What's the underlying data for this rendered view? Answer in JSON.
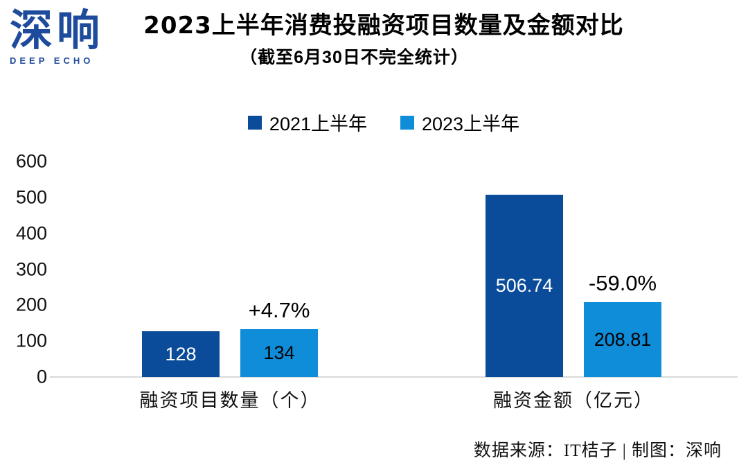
{
  "logo": {
    "text": "深响",
    "subtext": "DEEP ECHO",
    "color": "#1e4b9c"
  },
  "header": {
    "title": "2023上半年消费投融资项目数量及金额对比",
    "subtitle": "（截至6月30日不完全统计）"
  },
  "chart_data": {
    "type": "bar",
    "categories": [
      "融资项目数量（个）",
      "融资金额（亿元）"
    ],
    "category_keys": [
      "project-count",
      "amount"
    ],
    "series": [
      {
        "key": "2021-h1",
        "name": "2021上半年",
        "color": "#0b4c9a",
        "label_color": "#ffffff",
        "values": [
          128,
          506.74
        ]
      },
      {
        "key": "2023-h1",
        "name": "2023上半年",
        "color": "#0f8dd8",
        "label_color": "#000000",
        "values": [
          134,
          208.81
        ]
      }
    ],
    "change_labels": [
      "+4.7%",
      "-59.0%"
    ],
    "yticks": [
      0,
      100,
      200,
      300,
      400,
      500,
      600
    ],
    "ylim": [
      0,
      600
    ],
    "grid": false,
    "legend_position": "top",
    "axis_line_color": "#d9d9d9"
  },
  "footer": {
    "source": "数据来源：IT桔子 | 制图：深响"
  }
}
